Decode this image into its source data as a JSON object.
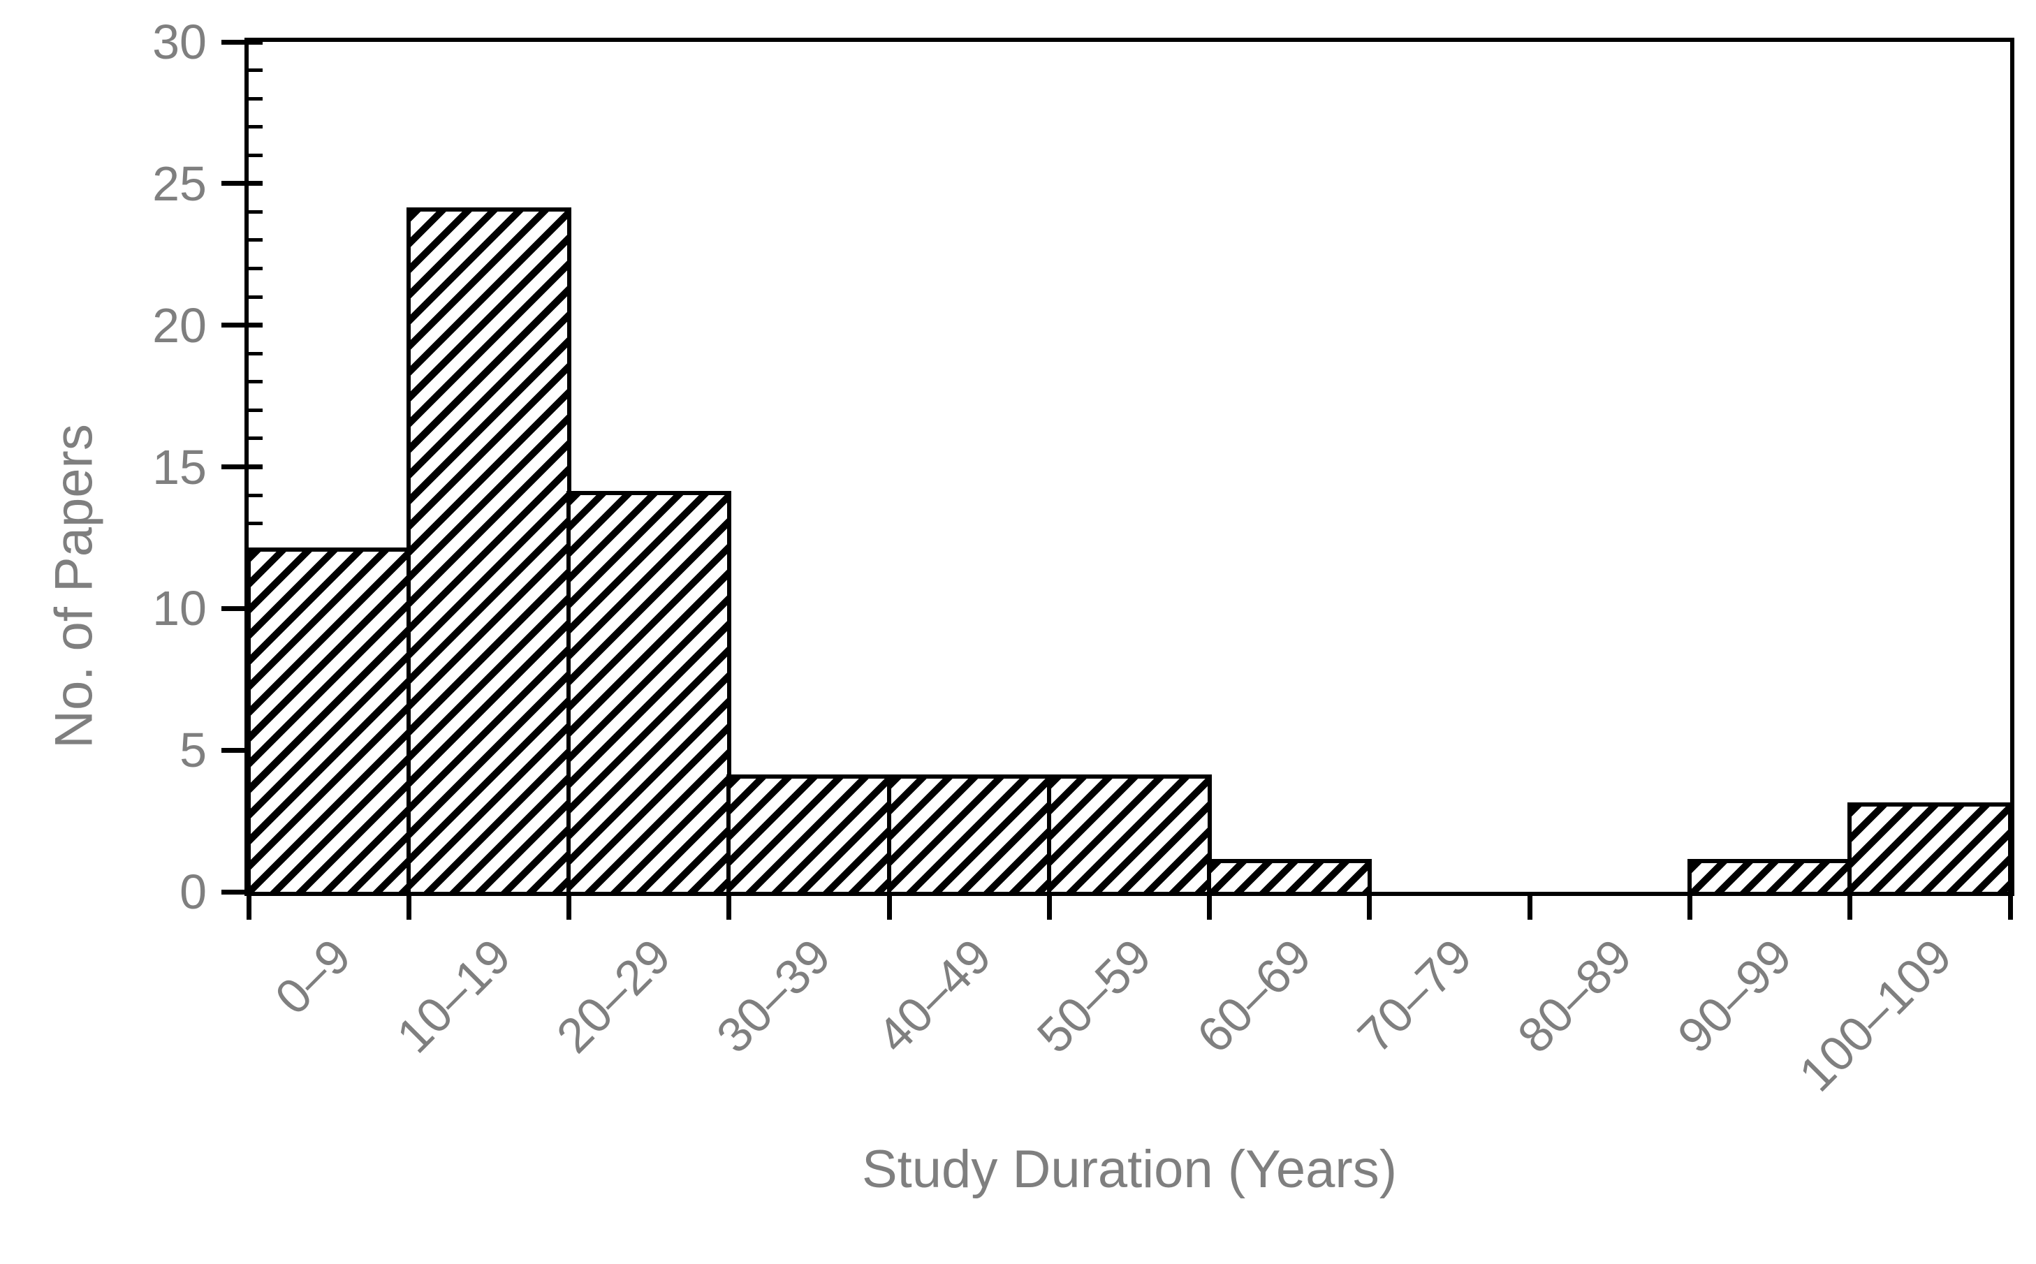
{
  "chart_data": {
    "type": "bar",
    "title": "",
    "categories": [
      "0–9",
      "10–19",
      "20–29",
      "30–39",
      "40–49",
      "50–59",
      "60–69",
      "70–79",
      "80–89",
      "90–99",
      "100–109"
    ],
    "values": [
      12,
      24,
      14,
      4,
      4,
      4,
      1,
      0,
      0,
      1,
      3
    ],
    "xlabel": "Study Duration (Years)",
    "ylabel": "No. of Papers",
    "ylim": [
      0,
      30
    ],
    "ytick_step": 5,
    "yminor_step": 1,
    "yticks": [
      0,
      5,
      10,
      15,
      20,
      25,
      30
    ],
    "grid": false,
    "legend_position": "none",
    "bar_style": "diagonal-hatch-45",
    "colors": {
      "bar_hatch": "#000000",
      "bar_background": "#ffffff",
      "axis_line": "#000000",
      "label_text": "#7f7f7f",
      "plot_background": "#ffffff"
    }
  }
}
